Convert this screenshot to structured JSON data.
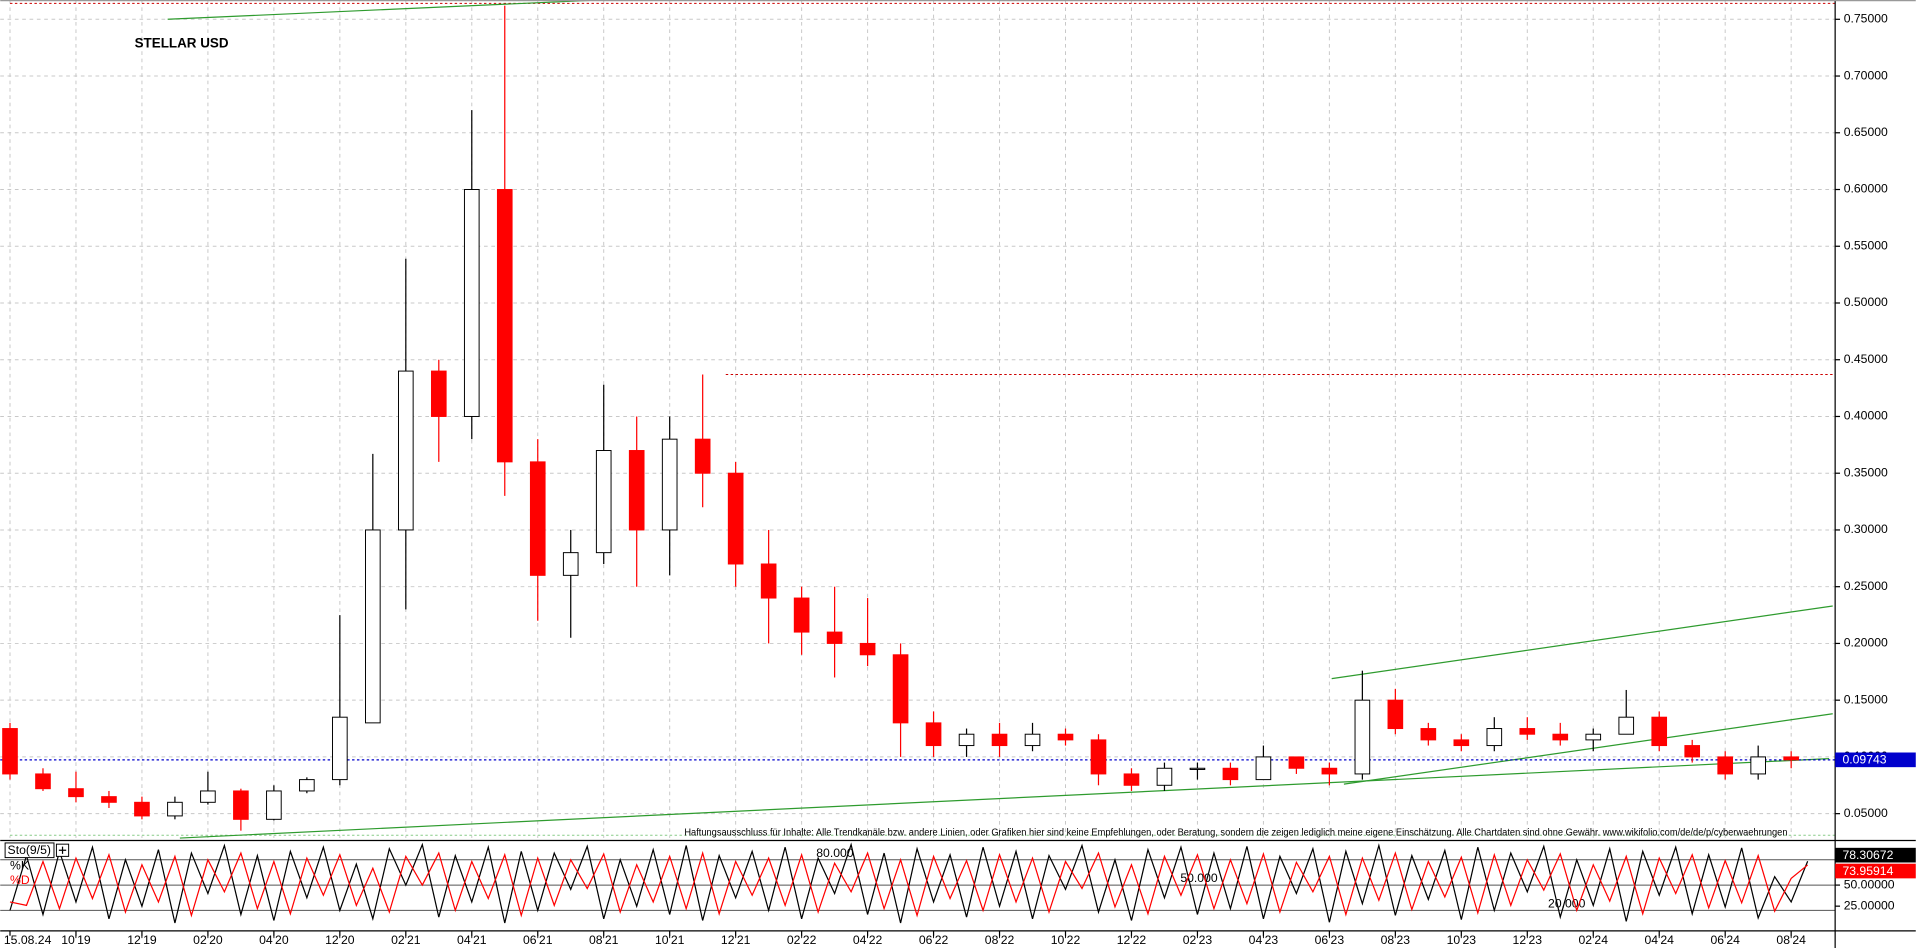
{
  "chart_data": [
    {
      "type": "candlestick",
      "title": "STELLAR USD",
      "categories": [
        "15.08.24",
        null,
        "10'19",
        null,
        "12'19",
        null,
        "02'20",
        null,
        "04'20",
        null,
        "12'20",
        null,
        "02'21",
        null,
        "04'21",
        null,
        "06'21",
        null,
        "08'21",
        null,
        "10'21",
        null,
        "12'21",
        null,
        "02'22",
        null,
        "04'22",
        null,
        "06'22",
        null,
        "08'22",
        null,
        "10'22",
        null,
        "12'22",
        null,
        "02'23",
        null,
        "04'23",
        null,
        "06'23",
        null,
        "08'23",
        null,
        "10'23",
        null,
        "12'23",
        null,
        "02'24",
        null,
        "04'24",
        null,
        "06'24",
        null,
        "08'24"
      ],
      "open": [
        0.125,
        0.085,
        0.072,
        0.065,
        0.06,
        0.048,
        0.06,
        0.07,
        0.045,
        0.07,
        0.08,
        0.13,
        0.3,
        0.44,
        0.4,
        0.6,
        0.36,
        0.26,
        0.28,
        0.37,
        0.3,
        0.38,
        0.35,
        0.27,
        0.24,
        0.21,
        0.2,
        0.19,
        0.13,
        0.11,
        0.12,
        0.11,
        0.12,
        0.115,
        0.085,
        0.075,
        0.09,
        0.09,
        0.08,
        0.1,
        0.09,
        0.085,
        0.15,
        0.125,
        0.115,
        0.11,
        0.125,
        0.12,
        0.115,
        0.12,
        0.135,
        0.11,
        0.1,
        0.085,
        0.1
      ],
      "high": [
        0.13,
        0.09,
        0.087,
        0.07,
        0.065,
        0.065,
        0.087,
        0.072,
        0.075,
        0.082,
        0.225,
        0.367,
        0.539,
        0.45,
        0.67,
        0.762,
        0.38,
        0.3,
        0.428,
        0.4,
        0.4,
        0.437,
        0.36,
        0.3,
        0.25,
        0.25,
        0.24,
        0.2,
        0.14,
        0.125,
        0.13,
        0.13,
        0.125,
        0.12,
        0.09,
        0.095,
        0.095,
        0.095,
        0.11,
        0.1,
        0.095,
        0.176,
        0.16,
        0.13,
        0.12,
        0.135,
        0.135,
        0.13,
        0.125,
        0.159,
        0.14,
        0.115,
        0.105,
        0.11,
        0.105
      ],
      "low": [
        0.08,
        0.07,
        0.06,
        0.055,
        0.045,
        0.045,
        0.058,
        0.035,
        0.044,
        0.068,
        0.075,
        0.13,
        0.23,
        0.36,
        0.38,
        0.33,
        0.22,
        0.205,
        0.27,
        0.25,
        0.26,
        0.32,
        0.25,
        0.2,
        0.19,
        0.17,
        0.18,
        0.1,
        0.1,
        0.1,
        0.1,
        0.105,
        0.11,
        0.075,
        0.07,
        0.07,
        0.08,
        0.075,
        0.08,
        0.085,
        0.075,
        0.08,
        0.12,
        0.11,
        0.105,
        0.105,
        0.115,
        0.11,
        0.105,
        0.12,
        0.105,
        0.095,
        0.08,
        0.08,
        0.09
      ],
      "close": [
        0.085,
        0.072,
        0.065,
        0.06,
        0.048,
        0.06,
        0.07,
        0.045,
        0.07,
        0.08,
        0.135,
        0.3,
        0.44,
        0.4,
        0.6,
        0.36,
        0.26,
        0.28,
        0.37,
        0.3,
        0.38,
        0.35,
        0.27,
        0.24,
        0.21,
        0.2,
        0.19,
        0.13,
        0.11,
        0.12,
        0.11,
        0.12,
        0.115,
        0.085,
        0.075,
        0.09,
        0.09,
        0.08,
        0.1,
        0.09,
        0.085,
        0.15,
        0.125,
        0.115,
        0.11,
        0.125,
        0.12,
        0.115,
        0.12,
        0.135,
        0.11,
        0.1,
        0.085,
        0.1,
        0.09743
      ],
      "up_color": "#000000",
      "down_color": "#ff0000",
      "ylim": [
        0.0285,
        0.767
      ],
      "yticks": [
        {
          "value": 0.05,
          "label": "0.05000"
        },
        {
          "value": 0.1,
          "label": "0.10000"
        },
        {
          "value": 0.15,
          "label": "0.15000"
        },
        {
          "value": 0.2,
          "label": "0.20000"
        },
        {
          "value": 0.25,
          "label": "0.25000"
        },
        {
          "value": 0.3,
          "label": "0.30000"
        },
        {
          "value": 0.35,
          "label": "0.35000"
        },
        {
          "value": 0.4,
          "label": "0.40000"
        },
        {
          "value": 0.45,
          "label": "0.45000"
        },
        {
          "value": 0.5,
          "label": "0.50000"
        },
        {
          "value": 0.55,
          "label": "0.55000"
        },
        {
          "value": 0.6,
          "label": "0.60000"
        },
        {
          "value": 0.65,
          "label": "0.65000"
        },
        {
          "value": 0.7,
          "label": "0.70000"
        },
        {
          "value": 0.75,
          "label": "0.75000"
        }
      ],
      "grid": true,
      "last_price": 0.09743,
      "last_price_color": "#0000cc",
      "trendlines": [
        {
          "color": "#2e9b2e",
          "points": [
            [
              4.78,
              0.75
            ],
            [
              17.85,
              0.767
            ]
          ]
        },
        {
          "color": "#2e9b2e",
          "points": [
            [
              5.15,
              0.0285
            ],
            [
              55.15,
              0.0985
            ]
          ]
        },
        {
          "color": "#2e9b2e",
          "points": [
            [
              40.07,
              0.169
            ],
            [
              55.26,
              0.233
            ]
          ]
        },
        {
          "color": "#2e9b2e",
          "points": [
            [
              40.44,
              0.076
            ],
            [
              55.26,
              0.138
            ]
          ]
        }
      ],
      "levels": [
        {
          "value": 0.764,
          "from": 0,
          "color": "#cc0000"
        },
        {
          "value": 0.437,
          "from": 21.7,
          "color": "#cc0000"
        },
        {
          "value": 0.031,
          "from": 0,
          "color": "#88cc88"
        }
      ],
      "annotation": "Haftungsausschluss für Inhalte: Alle Trendkanäle bzw. andere Linien, oder Grafiken hier sind keine Empfehlungen, oder Beratung, sondern die zeigen lediglich meine eigene Einschätzung. Alle Chartdaten sind ohne Gewähr. www.wikifolio.com/de/de/p/cyberwaehrungen"
    },
    {
      "type": "line",
      "title": "Sto(9/5)",
      "series": [
        {
          "name": "%K",
          "color": "#000000",
          "values": [
            20,
            85,
            15,
            90,
            30,
            95,
            10,
            80,
            25,
            92,
            5,
            88,
            40,
            97,
            15,
            85,
            8,
            90,
            35,
            95,
            20,
            75,
            10,
            93,
            50,
            98,
            12,
            85,
            30,
            95,
            5,
            90,
            20,
            88,
            45,
            96,
            10,
            80,
            25,
            92,
            15,
            97,
            8,
            85,
            35,
            90,
            20,
            95,
            10,
            82,
            40,
            98,
            15,
            88,
            5,
            93,
            30,
            86,
            12,
            95,
            25,
            90,
            10,
            85,
            45,
            97,
            18,
            80,
            8,
            92,
            35,
            95,
            15,
            88,
            22,
            96,
            10,
            84,
            40,
            93,
            6,
            90,
            28,
            97,
            14,
            85,
            33,
            91,
            9,
            95,
            20,
            88,
            42,
            96,
            12,
            80,
            26,
            93,
            7,
            90,
            38,
            95,
            16,
            86,
            24,
            94,
            11,
            60,
            30,
            78.30672
          ]
        },
        {
          "name": "%D",
          "color": "#ff0000",
          "values": [
            30,
            26,
            78,
            22,
            82,
            34,
            86,
            18,
            74,
            30,
            84,
            14,
            80,
            42,
            88,
            22,
            78,
            16,
            82,
            38,
            86,
            26,
            70,
            18,
            84,
            50,
            88,
            20,
            78,
            34,
            86,
            14,
            82,
            26,
            80,
            46,
            87,
            18,
            74,
            30,
            84,
            22,
            88,
            16,
            78,
            38,
            82,
            26,
            86,
            18,
            76,
            42,
            88,
            22,
            80,
            14,
            84,
            34,
            79,
            20,
            86,
            30,
            82,
            18,
            78,
            46,
            88,
            24,
            74,
            16,
            84,
            38,
            86,
            22,
            80,
            28,
            87,
            18,
            77,
            42,
            84,
            15,
            82,
            32,
            88,
            21,
            78,
            36,
            83,
            17,
            86,
            26,
            80,
            44,
            87,
            20,
            74,
            31,
            84,
            16,
            82,
            40,
            86,
            23,
            79,
            29,
            85,
            19,
            58,
            73.95914
          ]
        }
      ],
      "ylim": [
        0,
        100
      ],
      "yticks": [
        {
          "value": 25,
          "label": "25.00000"
        },
        {
          "value": 50,
          "label": "50.00000"
        }
      ],
      "levels": [
        {
          "value": 80,
          "label": "80.000"
        },
        {
          "value": 50,
          "label": "50.000"
        },
        {
          "value": 20,
          "label": "20.000"
        }
      ]
    }
  ]
}
